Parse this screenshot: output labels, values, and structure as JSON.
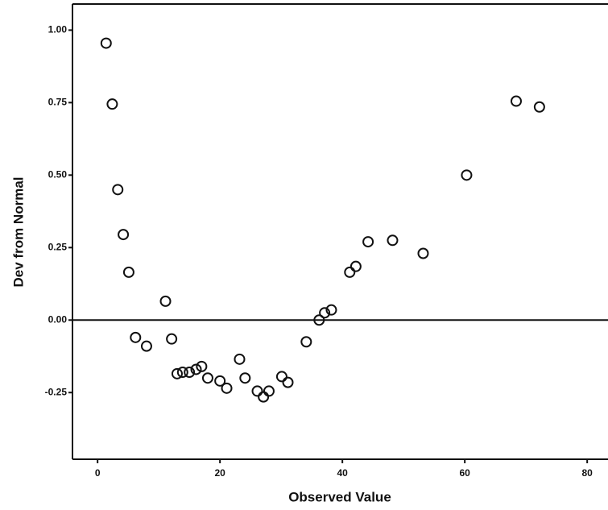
{
  "chart_data": {
    "type": "scatter",
    "x_label": "Observed Value",
    "y_label": "Dev from Normal",
    "x": [
      1.4,
      2.4,
      3.3,
      4.2,
      5.1,
      6.2,
      8.0,
      11.1,
      12.1,
      13.0,
      13.9,
      15.0,
      16.1,
      17.0,
      18.0,
      20.0,
      21.1,
      23.2,
      24.1,
      26.1,
      27.1,
      28.0,
      30.1,
      31.1,
      34.1,
      36.2,
      37.1,
      38.2,
      41.2,
      42.2,
      44.2,
      48.2,
      53.2,
      60.3,
      68.4,
      72.2
    ],
    "values": [
      0.955,
      0.745,
      0.45,
      0.295,
      0.165,
      -0.06,
      -0.09,
      0.065,
      -0.065,
      -0.185,
      -0.18,
      -0.18,
      -0.17,
      -0.16,
      -0.2,
      -0.21,
      -0.235,
      -0.135,
      -0.2,
      -0.245,
      -0.265,
      -0.245,
      -0.195,
      -0.215,
      -0.075,
      0.0,
      0.025,
      0.035,
      0.165,
      0.185,
      0.27,
      0.275,
      0.23,
      0.5,
      0.755,
      0.735
    ],
    "color": "#111111",
    "xlim": [
      -4.1,
      83.4
    ],
    "ylim": [
      -0.48,
      1.09
    ],
    "xticks": [
      0,
      20,
      40,
      60,
      80
    ],
    "yticks": [
      {
        "value": -0.25,
        "label": "-0.25"
      },
      {
        "value": 0,
        "label": "0.00"
      },
      {
        "value": 0.25,
        "label": "0.25"
      },
      {
        "value": 0.5,
        "label": "0.50"
      },
      {
        "value": 0.75,
        "label": "0.75"
      },
      {
        "value": 1,
        "label": "1.00"
      }
    ],
    "reference_y": 0
  }
}
